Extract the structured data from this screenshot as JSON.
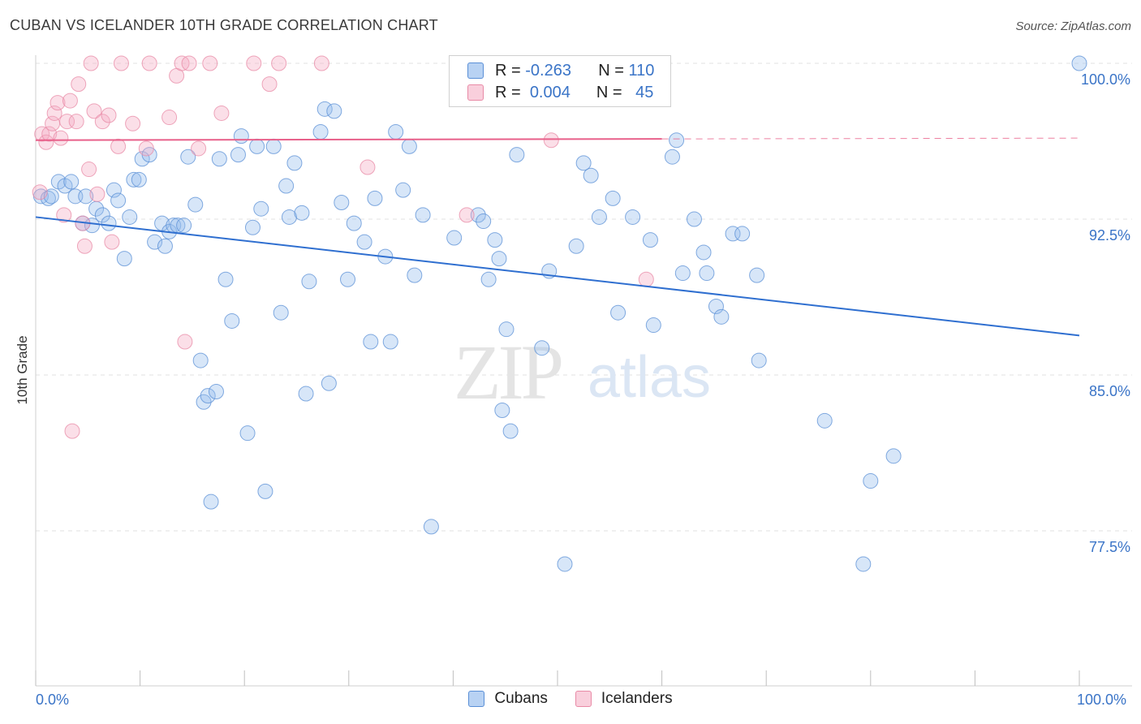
{
  "title": "CUBAN VS ICELANDER 10TH GRADE CORRELATION CHART",
  "source": "Source: ZipAtlas.com",
  "watermark": {
    "zip": "ZIP",
    "atlas": "atlas"
  },
  "legend": {
    "r_label": "R =",
    "n_label": "N =",
    "rows": [
      {
        "r": "-0.263",
        "n": "110"
      },
      {
        "r": "0.004",
        "n": "45"
      }
    ]
  },
  "chart_data": {
    "type": "scatter",
    "title": "CUBAN VS ICELANDER 10TH GRADE CORRELATION CHART",
    "xlabel": "",
    "ylabel": "10th Grade",
    "xlim": [
      0,
      100
    ],
    "ylim": [
      70.0,
      101.0
    ],
    "x_tick_labels": [
      "0.0%",
      "100.0%"
    ],
    "y_ticks": [
      77.5,
      85.0,
      92.5,
      100.0
    ],
    "y_tick_labels": [
      "77.5%",
      "85.0%",
      "92.5%",
      "100.0%"
    ],
    "grid": "horizontal dashed",
    "legend_position": "top-center",
    "series": [
      {
        "name": "Cubans",
        "color": "#7aa7e0",
        "stroke": "#5a8fd6",
        "trend": {
          "x0": 0,
          "y0": 92.6,
          "x1": 100,
          "y1": 86.9,
          "color": "#2f6fd0"
        },
        "points": [
          [
            0.5,
            93.6
          ],
          [
            1.2,
            93.5
          ],
          [
            1.5,
            93.6
          ],
          [
            2.2,
            94.3
          ],
          [
            2.8,
            94.1
          ],
          [
            3.4,
            94.3
          ],
          [
            3.8,
            93.6
          ],
          [
            4.5,
            92.3
          ],
          [
            4.8,
            93.6
          ],
          [
            5.4,
            92.2
          ],
          [
            5.8,
            93.0
          ],
          [
            6.4,
            92.7
          ],
          [
            7.0,
            92.3
          ],
          [
            7.5,
            93.9
          ],
          [
            7.9,
            93.4
          ],
          [
            8.5,
            90.6
          ],
          [
            9.0,
            92.6
          ],
          [
            9.4,
            94.4
          ],
          [
            9.9,
            94.4
          ],
          [
            10.2,
            95.4
          ],
          [
            10.9,
            95.6
          ],
          [
            11.4,
            91.4
          ],
          [
            12.1,
            92.3
          ],
          [
            12.4,
            91.2
          ],
          [
            12.8,
            91.9
          ],
          [
            13.2,
            92.2
          ],
          [
            13.6,
            92.2
          ],
          [
            14.2,
            92.2
          ],
          [
            14.6,
            95.5
          ],
          [
            15.3,
            93.2
          ],
          [
            15.8,
            85.7
          ],
          [
            16.1,
            83.7
          ],
          [
            16.5,
            84.0
          ],
          [
            16.8,
            78.9
          ],
          [
            17.3,
            84.2
          ],
          [
            17.6,
            95.4
          ],
          [
            18.2,
            89.6
          ],
          [
            18.8,
            87.6
          ],
          [
            19.4,
            95.6
          ],
          [
            19.7,
            96.5
          ],
          [
            20.3,
            82.2
          ],
          [
            20.8,
            92.1
          ],
          [
            21.2,
            96.0
          ],
          [
            21.6,
            93.0
          ],
          [
            22.0,
            79.4
          ],
          [
            22.8,
            96.0
          ],
          [
            23.5,
            88.0
          ],
          [
            24.0,
            94.1
          ],
          [
            24.3,
            92.6
          ],
          [
            24.8,
            95.2
          ],
          [
            25.5,
            92.8
          ],
          [
            25.9,
            84.1
          ],
          [
            26.2,
            89.5
          ],
          [
            27.3,
            96.7
          ],
          [
            27.7,
            97.8
          ],
          [
            28.1,
            84.6
          ],
          [
            28.6,
            97.7
          ],
          [
            29.3,
            93.3
          ],
          [
            29.9,
            89.6
          ],
          [
            30.5,
            92.3
          ],
          [
            31.5,
            91.4
          ],
          [
            32.1,
            86.6
          ],
          [
            32.5,
            93.5
          ],
          [
            33.5,
            90.7
          ],
          [
            34.0,
            86.6
          ],
          [
            34.5,
            96.7
          ],
          [
            35.2,
            93.9
          ],
          [
            35.8,
            96.0
          ],
          [
            36.3,
            89.8
          ],
          [
            37.1,
            92.7
          ],
          [
            37.9,
            77.7
          ],
          [
            40.1,
            91.6
          ],
          [
            42.4,
            92.7
          ],
          [
            42.9,
            92.4
          ],
          [
            43.4,
            89.6
          ],
          [
            44.0,
            91.5
          ],
          [
            44.4,
            90.6
          ],
          [
            44.7,
            83.3
          ],
          [
            45.1,
            87.2
          ],
          [
            45.5,
            82.3
          ],
          [
            46.1,
            95.6
          ],
          [
            48.5,
            86.3
          ],
          [
            49.2,
            90.0
          ],
          [
            50.7,
            75.9
          ],
          [
            51.8,
            91.2
          ],
          [
            52.5,
            95.2
          ],
          [
            53.2,
            94.6
          ],
          [
            54.0,
            92.6
          ],
          [
            55.3,
            93.5
          ],
          [
            55.8,
            88.0
          ],
          [
            57.2,
            92.6
          ],
          [
            58.9,
            91.5
          ],
          [
            59.2,
            87.4
          ],
          [
            61.0,
            95.5
          ],
          [
            61.4,
            96.3
          ],
          [
            62.0,
            89.9
          ],
          [
            63.1,
            92.5
          ],
          [
            64.0,
            90.9
          ],
          [
            64.3,
            89.9
          ],
          [
            65.2,
            88.3
          ],
          [
            65.7,
            87.8
          ],
          [
            66.8,
            91.8
          ],
          [
            67.7,
            91.8
          ],
          [
            69.1,
            89.8
          ],
          [
            69.3,
            85.7
          ],
          [
            75.6,
            82.8
          ],
          [
            80.0,
            79.9
          ],
          [
            82.2,
            81.1
          ],
          [
            79.3,
            75.9
          ],
          [
            100.0,
            100.0
          ]
        ]
      },
      {
        "name": "Icelanders",
        "color": "#f2a7bd",
        "stroke": "#e88aa6",
        "trend": {
          "x0": 0,
          "y0": 96.3,
          "x1": 100,
          "y1": 96.4,
          "color": "#e8608a"
        },
        "points": [
          [
            0.4,
            93.8
          ],
          [
            0.6,
            96.6
          ],
          [
            1.0,
            96.2
          ],
          [
            1.3,
            96.6
          ],
          [
            1.6,
            97.1
          ],
          [
            1.8,
            97.6
          ],
          [
            2.1,
            98.1
          ],
          [
            2.4,
            96.4
          ],
          [
            2.7,
            92.7
          ],
          [
            3.0,
            97.2
          ],
          [
            3.3,
            98.2
          ],
          [
            3.5,
            82.3
          ],
          [
            3.9,
            97.2
          ],
          [
            4.1,
            99.0
          ],
          [
            4.5,
            92.3
          ],
          [
            4.7,
            91.2
          ],
          [
            5.1,
            94.9
          ],
          [
            5.3,
            100.0
          ],
          [
            5.6,
            97.7
          ],
          [
            5.9,
            93.7
          ],
          [
            6.4,
            97.2
          ],
          [
            7.0,
            97.5
          ],
          [
            7.3,
            91.4
          ],
          [
            7.9,
            96.0
          ],
          [
            8.2,
            100.0
          ],
          [
            9.3,
            97.1
          ],
          [
            10.6,
            95.9
          ],
          [
            10.9,
            100.0
          ],
          [
            12.8,
            97.4
          ],
          [
            13.5,
            99.4
          ],
          [
            14.0,
            100.0
          ],
          [
            14.3,
            86.6
          ],
          [
            14.7,
            100.0
          ],
          [
            15.6,
            95.9
          ],
          [
            16.7,
            100.0
          ],
          [
            17.8,
            97.6
          ],
          [
            20.9,
            100.0
          ],
          [
            22.4,
            99.0
          ],
          [
            23.3,
            100.0
          ],
          [
            27.4,
            100.0
          ],
          [
            31.8,
            95.0
          ],
          [
            41.3,
            92.7
          ],
          [
            48.9,
            100.0
          ],
          [
            49.4,
            96.3
          ],
          [
            58.5,
            89.6
          ]
        ]
      }
    ]
  }
}
